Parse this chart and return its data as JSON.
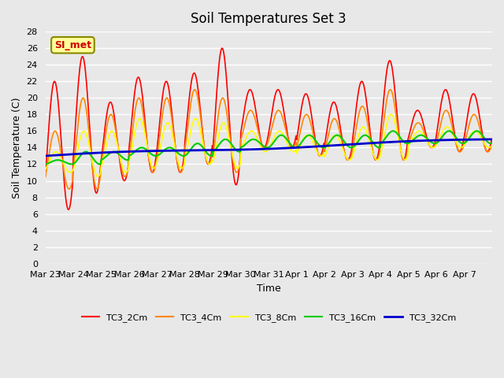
{
  "title": "Soil Temperatures Set 3",
  "xlabel": "Time",
  "ylabel": "Soil Temperature (C)",
  "ylim": [
    0,
    28
  ],
  "yticks": [
    0,
    2,
    4,
    6,
    8,
    10,
    12,
    14,
    16,
    18,
    20,
    22,
    24,
    26,
    28
  ],
  "plot_bg_color": "#e8e8e8",
  "grid_color": "#ffffff",
  "legend_entries": [
    "TC3_2Cm",
    "TC3_4Cm",
    "TC3_8Cm",
    "TC3_16Cm",
    "TC3_32Cm"
  ],
  "line_colors": [
    "#ff0000",
    "#ff8800",
    "#ffff00",
    "#00cc00",
    "#0000cc"
  ],
  "line_widths": [
    1.2,
    1.2,
    1.2,
    1.5,
    2.0
  ],
  "annotation_text": "SI_met",
  "annotation_color": "#cc0000",
  "annotation_bg": "#ffff99",
  "annotation_border": "#888800",
  "dates": [
    "Mar 23",
    "Mar 24",
    "Mar 25",
    "Mar 26",
    "Mar 27",
    "Mar 28",
    "Mar 29",
    "Mar 30",
    "Mar 31",
    "Apr 1",
    "Apr 2",
    "Apr 3",
    "Apr 4",
    "Apr 5",
    "Apr 6",
    "Apr 7"
  ],
  "num_days": 16
}
